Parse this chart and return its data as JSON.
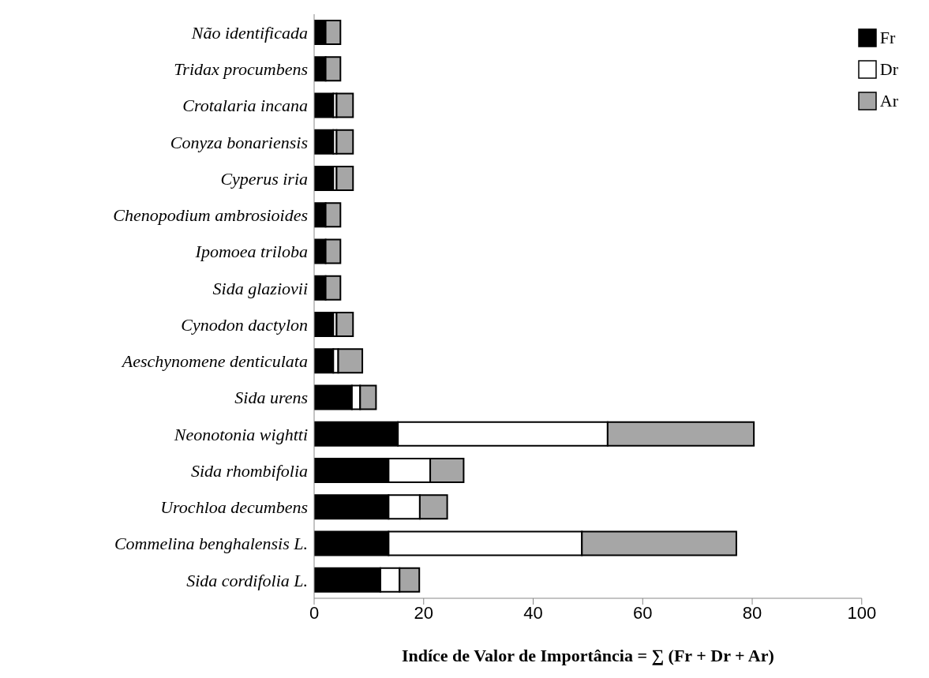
{
  "chart_data": {
    "type": "bar",
    "orientation": "horizontal",
    "stacked": true,
    "xlabel": "Indíce de Valor de Importância = ∑ (Fr + Dr + Ar)",
    "categories": [
      "Não identificada",
      "Tridax procumbens",
      "Crotalaria incana",
      "Conyza bonariensis",
      "Cyperus iria",
      "Chenopodium ambrosioides",
      "Ipomoea triloba",
      "Sida glaziovii",
      "Cynodon dactylon",
      "Aeschynomene denticulata",
      "Sida urens",
      "Neonotonia wightti",
      "Sida rhombifolia",
      "Urochloa decumbens",
      "Commelina benghalensis L.",
      "Sida cordifolia L."
    ],
    "series": [
      {
        "name": "Fr",
        "color": "#000000",
        "values": [
          2.1,
          2.1,
          3.5,
          3.5,
          3.5,
          2.1,
          2.1,
          2.1,
          3.5,
          3.5,
          6.9,
          15.3,
          13.6,
          13.6,
          13.6,
          12.1
        ]
      },
      {
        "name": "Dr",
        "color": "#ffffff",
        "values": [
          0,
          0,
          0.6,
          0.6,
          0.6,
          0,
          0,
          0,
          0.6,
          0.9,
          1.5,
          38.3,
          7.6,
          5.7,
          35.3,
          3.5
        ]
      },
      {
        "name": "Ar",
        "color": "#a6a6a6",
        "values": [
          2.7,
          2.7,
          3.0,
          3.0,
          3.0,
          2.7,
          2.7,
          2.7,
          3.0,
          4.4,
          2.9,
          26.7,
          6.1,
          5.0,
          28.2,
          3.6
        ]
      }
    ],
    "xlim": [
      0,
      100
    ],
    "xticks": [
      0,
      20,
      40,
      60,
      80,
      100
    ],
    "legend": "top right",
    "grid": false
  }
}
